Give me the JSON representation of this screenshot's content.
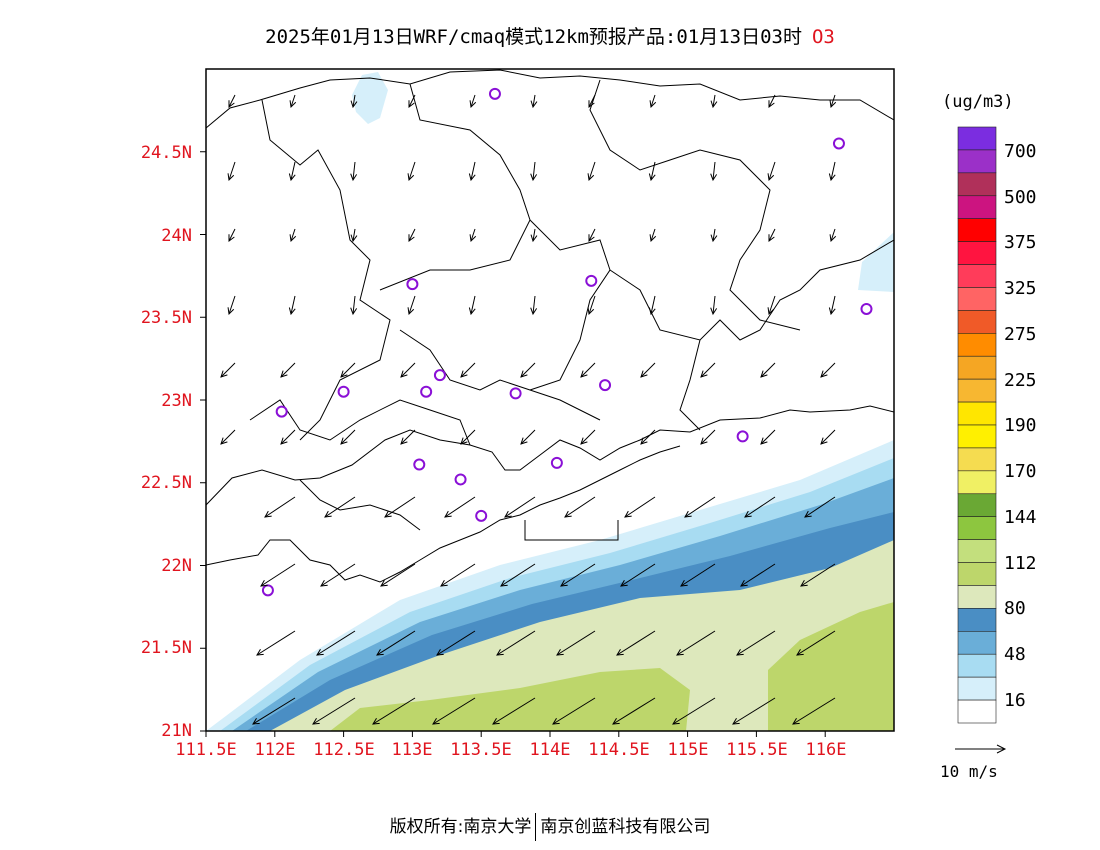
{
  "title": {
    "text": "2025年01月13日WRF/cmaq模式12km预报产品:01月13日03时",
    "pollutant": "O3"
  },
  "axes": {
    "y_labels": [
      "24.5N",
      "24N",
      "23.5N",
      "23N",
      "22.5N",
      "22N",
      "21.5N",
      "21N"
    ],
    "x_labels": [
      "111.5E",
      "112E",
      "112.5E",
      "113E",
      "113.5E",
      "114E",
      "114.5E",
      "115E",
      "115.5E",
      "116E"
    ],
    "lat_range": [
      21.0,
      25.0
    ],
    "lon_range": [
      111.5,
      116.5
    ]
  },
  "colorbar": {
    "unit": "(ug/m3)",
    "labels": [
      "700",
      "500",
      "375",
      "325",
      "275",
      "225",
      "190",
      "170",
      "144",
      "112",
      "80",
      "48",
      "16"
    ],
    "colors": [
      "#7b2de0",
      "#9b30c8",
      "#b0305a",
      "#cc1480",
      "#ff0000",
      "#ff1440",
      "#ff3c5a",
      "#ff6464",
      "#f05a28",
      "#ff8c00",
      "#f5a623",
      "#f7b731",
      "#ffe600",
      "#fff000",
      "#f5dc50",
      "#f0f064",
      "#6aa834",
      "#8dc63f",
      "#c3df7d",
      "#bdd66b",
      "#dde8bc",
      "#4a8ec4",
      "#6aaed8",
      "#a8dcf2",
      "#d6effa",
      "#ffffff"
    ]
  },
  "wind_legend": {
    "label": "10 m/s"
  },
  "stations": [
    {
      "lon": 113.6,
      "lat": 24.85
    },
    {
      "lon": 116.1,
      "lat": 24.55
    },
    {
      "lon": 113.0,
      "lat": 23.7
    },
    {
      "lon": 114.3,
      "lat": 23.72
    },
    {
      "lon": 116.3,
      "lat": 23.55
    },
    {
      "lon": 113.2,
      "lat": 23.15
    },
    {
      "lon": 112.5,
      "lat": 23.05
    },
    {
      "lon": 113.1,
      "lat": 23.05
    },
    {
      "lon": 113.75,
      "lat": 23.04
    },
    {
      "lon": 114.4,
      "lat": 23.09
    },
    {
      "lon": 112.05,
      "lat": 22.93
    },
    {
      "lon": 115.4,
      "lat": 22.78
    },
    {
      "lon": 113.05,
      "lat": 22.61
    },
    {
      "lon": 113.35,
      "lat": 22.52
    },
    {
      "lon": 114.05,
      "lat": 22.62
    },
    {
      "lon": 113.5,
      "lat": 22.3
    },
    {
      "lon": 111.95,
      "lat": 21.85
    }
  ],
  "copyright": {
    "left": "版权所有:南京大学",
    "right": "南京创蓝科技有限公司"
  }
}
